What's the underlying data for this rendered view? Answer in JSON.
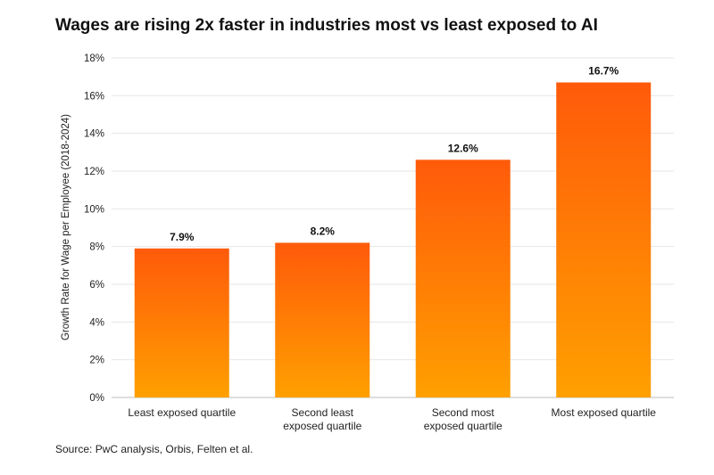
{
  "chart_data": {
    "type": "bar",
    "title": "Wages are rising 2x faster in industries most vs least exposed to AI",
    "ylabel": "Growth Rate for Wage per Employee (2018-2024)",
    "xlabel": "",
    "categories": [
      [
        "Least exposed quartile"
      ],
      [
        "Second least",
        "exposed quartile"
      ],
      [
        "Second most",
        "exposed quartile"
      ],
      [
        "Most exposed quartile"
      ]
    ],
    "values": [
      7.9,
      8.2,
      12.6,
      16.7
    ],
    "value_labels": [
      "7.9%",
      "8.2%",
      "12.6%",
      "16.7%"
    ],
    "ylim": [
      0,
      18
    ],
    "yticks": [
      0,
      2,
      4,
      6,
      8,
      10,
      12,
      14,
      16,
      18
    ],
    "ytick_labels": [
      "0%",
      "2%",
      "4%",
      "6%",
      "8%",
      "10%",
      "12%",
      "14%",
      "16%",
      "18%"
    ],
    "grid": true,
    "colors": {
      "bar_top": "#ff5a0a",
      "bar_bottom": "#ffa000",
      "grid": "#e6e6e6",
      "axis": "#bbbbbb"
    }
  },
  "source": "Source: PwC analysis, Orbis, Felten et al."
}
